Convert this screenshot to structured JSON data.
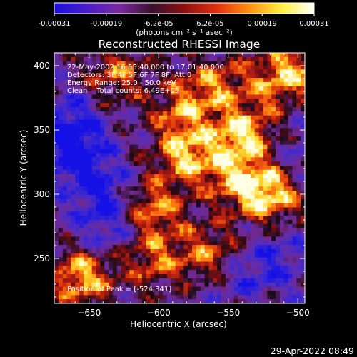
{
  "chart_data": {
    "type": "heatmap",
    "title": "Reconstructed RHESSI Image",
    "xlabel": "Heliocentric X (arcsec)",
    "ylabel": "Heliocentric Y (arcsec)",
    "xlim": [
      -675,
      -495
    ],
    "ylim": [
      215,
      410
    ],
    "xticks": [
      -650,
      -600,
      -550,
      -500
    ],
    "yticks": [
      250,
      300,
      350,
      400
    ],
    "xtick_labels": [
      "−650",
      "−600",
      "−550",
      "−500"
    ],
    "ytick_labels": [
      "250",
      "300",
      "350",
      "400"
    ],
    "colorbar": {
      "range": [
        -0.00031,
        0.00031
      ],
      "tick_labels": [
        "-0.00031",
        "-0.00019",
        "-6.2e-05",
        "6.2e-05",
        "0.00019",
        "0.00031"
      ],
      "label": "(photons cm⁻² s⁻¹ asec⁻²)",
      "colors": [
        "#1a10e0",
        "#4a1cc8",
        "#7a2aa0",
        "#3a1030",
        "#8a1010",
        "#e03010",
        "#ff9010",
        "#ffee40",
        "#ffffff"
      ]
    },
    "annotations": {
      "time_range": "22-May-2002 16:55:40.000 to 17:01:40.000",
      "detectors": "Detectors: 3F 4F 5F 6F 7F 8F, Att 0",
      "energy": "Energy Range: 25.0 - 50.0 keV",
      "method": "Clean    Total counts: 6.49E+03",
      "peak": "Position of Peak = [-524,341]"
    },
    "hot_spots": [
      {
        "x": -540,
        "y": 345,
        "v": 0.9
      },
      {
        "x": -520,
        "y": 300,
        "v": 0.95
      },
      {
        "x": -580,
        "y": 330,
        "v": 0.8
      },
      {
        "x": -605,
        "y": 290,
        "v": 0.65
      },
      {
        "x": -560,
        "y": 385,
        "v": 0.55
      },
      {
        "x": -630,
        "y": 395,
        "v": 0.5
      },
      {
        "x": -655,
        "y": 235,
        "v": 0.85
      },
      {
        "x": -605,
        "y": 250,
        "v": 0.55
      },
      {
        "x": -565,
        "y": 255,
        "v": 0.55
      },
      {
        "x": -520,
        "y": 385,
        "v": 0.4
      },
      {
        "x": -500,
        "y": 400,
        "v": 0.6
      },
      {
        "x": -585,
        "y": 365,
        "v": 0.5
      },
      {
        "x": -545,
        "y": 310,
        "v": 0.55
      }
    ],
    "cold_spots": [
      {
        "x": -660,
        "y": 330,
        "v": -0.9
      },
      {
        "x": -640,
        "y": 300,
        "v": -0.8
      },
      {
        "x": -665,
        "y": 355,
        "v": -0.75
      },
      {
        "x": -515,
        "y": 250,
        "v": -0.6
      },
      {
        "x": -540,
        "y": 235,
        "v": -0.5
      },
      {
        "x": -635,
        "y": 270,
        "v": -0.6
      },
      {
        "x": -500,
        "y": 330,
        "v": -0.5
      }
    ]
  },
  "timestamp": "29-Apr-2022 08:49"
}
